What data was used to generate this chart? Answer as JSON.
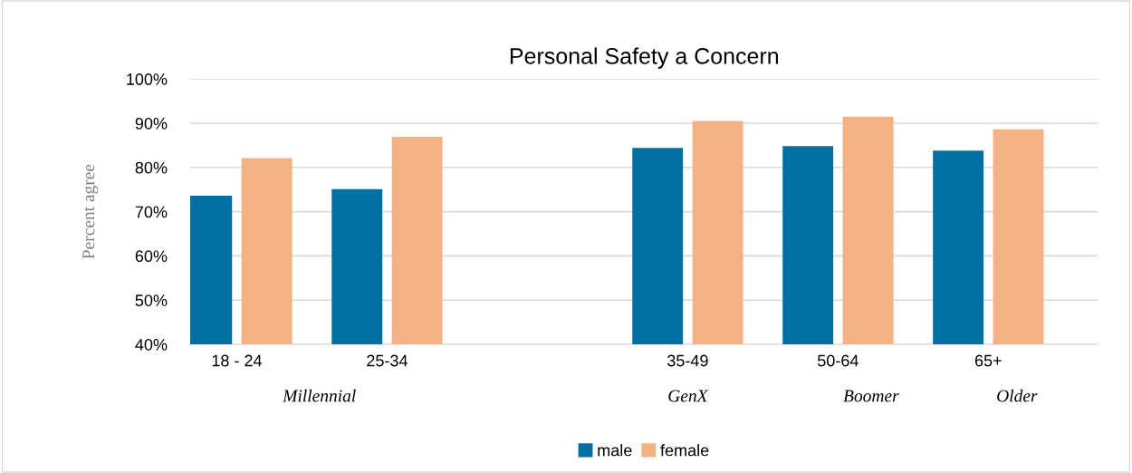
{
  "chart_data": {
    "type": "bar",
    "title": "Personal Safety a Concern",
    "ylabel": "Percent agree",
    "categories": [
      "18 - 24",
      "25-34",
      null,
      "35-49",
      "50-64",
      "65+"
    ],
    "series": [
      {
        "name": "male",
        "color": "#0070a3",
        "values": [
          73.6,
          75.1,
          null,
          84.4,
          84.8,
          83.8
        ]
      },
      {
        "name": "female",
        "color": "#f4b183",
        "values": [
          82.1,
          86.9,
          null,
          90.5,
          91.5,
          88.6
        ]
      }
    ],
    "ylim": [
      40,
      100
    ],
    "yticks": [
      {
        "value": 40,
        "label": "40%"
      },
      {
        "value": 50,
        "label": "50%"
      },
      {
        "value": 60,
        "label": "60%"
      },
      {
        "value": 70,
        "label": "70%"
      },
      {
        "value": 80,
        "label": "80%"
      },
      {
        "value": 90,
        "label": "90%"
      },
      {
        "value": 100,
        "label": "100%"
      }
    ],
    "grid": "y",
    "legend": "bottom",
    "annotations": [
      "Millennial",
      "GenX",
      "Boomer",
      "Older"
    ]
  }
}
